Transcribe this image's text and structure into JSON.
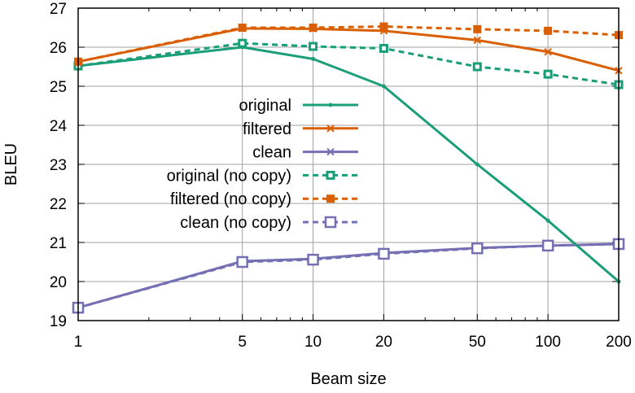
{
  "chart_data": {
    "type": "line",
    "title": "",
    "xlabel": "Beam size",
    "ylabel": "BLEU",
    "xscale": "log",
    "xlim": [
      1,
      200
    ],
    "ylim": [
      19,
      27
    ],
    "grid": true,
    "legend_position": "center",
    "x": [
      1,
      5,
      10,
      20,
      50,
      100,
      200
    ],
    "x_tick_labels": [
      "1",
      "5",
      "10",
      "20",
      "50",
      "100",
      "200"
    ],
    "y_ticks": [
      19,
      20,
      21,
      22,
      23,
      24,
      25,
      26,
      27
    ],
    "y_tick_labels": [
      "19",
      "20",
      "21",
      "22",
      "23",
      "24",
      "25",
      "26",
      "27"
    ],
    "series": [
      {
        "name": "original",
        "color": "#1a9e77",
        "dash": false,
        "marker": "dot",
        "values": [
          25.52,
          26.0,
          25.7,
          25.0,
          23.0,
          21.56,
          20.0
        ]
      },
      {
        "name": "filtered",
        "color": "#d95f02",
        "dash": false,
        "marker": "x",
        "values": [
          25.63,
          26.48,
          26.47,
          26.42,
          26.18,
          25.88,
          25.4
        ]
      },
      {
        "name": "clean",
        "color": "#7570b3",
        "dash": false,
        "marker": "x",
        "values": [
          19.33,
          20.52,
          20.58,
          20.73,
          20.86,
          20.92,
          20.96
        ]
      },
      {
        "name": "original (no copy)",
        "color": "#1a9e77",
        "dash": true,
        "marker": "square-small",
        "values": [
          25.52,
          26.1,
          26.02,
          25.97,
          25.5,
          25.31,
          25.04
        ]
      },
      {
        "name": "filtered (no copy)",
        "color": "#d95f02",
        "dash": true,
        "marker": "square-filled",
        "values": [
          25.63,
          26.5,
          26.5,
          26.53,
          26.46,
          26.42,
          26.31
        ]
      },
      {
        "name": "clean (no copy)",
        "color": "#7570b3",
        "dash": true,
        "marker": "square-open",
        "values": [
          19.33,
          20.5,
          20.56,
          20.71,
          20.85,
          20.92,
          20.96
        ]
      }
    ]
  }
}
